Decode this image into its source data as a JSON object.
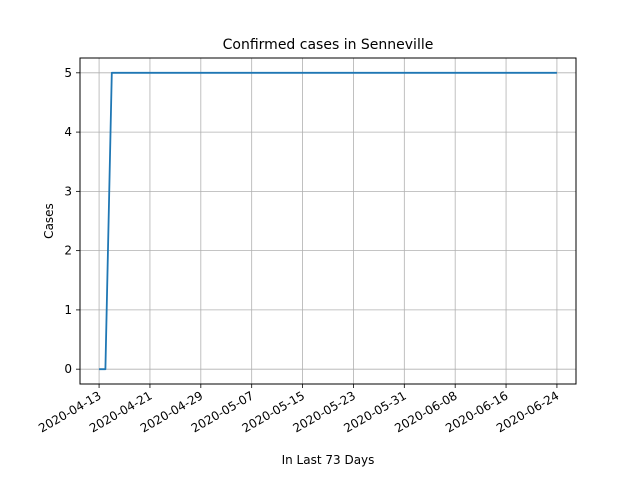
{
  "chart_data": {
    "type": "line",
    "title": "Confirmed cases in Senneville",
    "xlabel": "In Last 73 Days",
    "ylabel": "Cases",
    "x_start": "2020-04-13",
    "x_end": "2020-06-24",
    "xlim": [
      "2020-04-10",
      "2020-06-27"
    ],
    "ylim": [
      -0.25,
      5.25
    ],
    "x_ticks": [
      "2020-04-13",
      "2020-04-21",
      "2020-04-29",
      "2020-05-07",
      "2020-05-15",
      "2020-05-23",
      "2020-05-31",
      "2020-06-08",
      "2020-06-16",
      "2020-06-24"
    ],
    "y_ticks": [
      0,
      1,
      2,
      3,
      4,
      5
    ],
    "grid": true,
    "series": [
      {
        "color": "#1f77b4",
        "points": [
          {
            "x": "2020-04-13",
            "y": 0
          },
          {
            "x": "2020-04-14",
            "y": 0
          },
          {
            "x": "2020-04-15",
            "y": 5
          },
          {
            "x": "2020-06-24",
            "y": 5
          }
        ]
      }
    ]
  }
}
